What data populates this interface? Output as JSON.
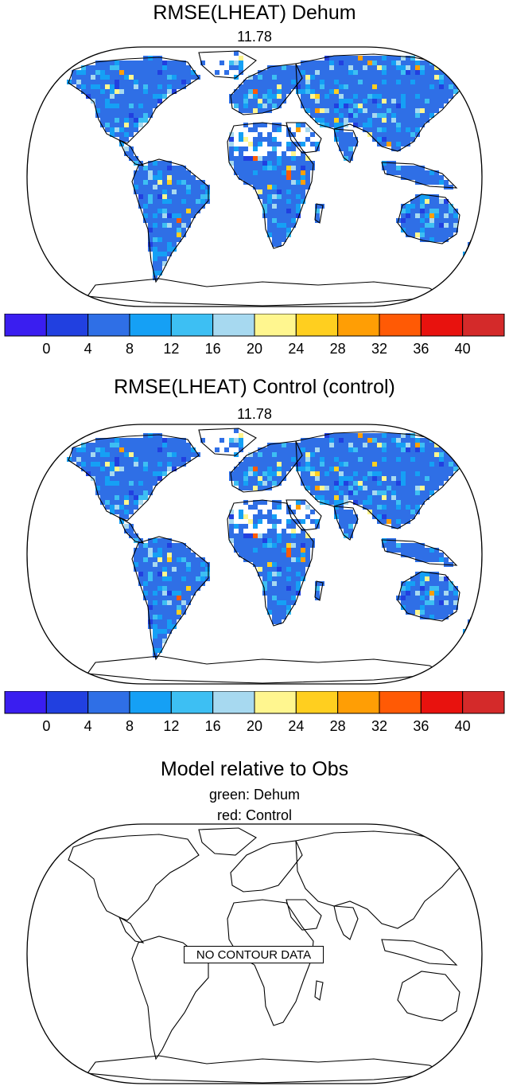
{
  "panels": [
    {
      "title": "RMSE(LHEAT) Dehum",
      "value_label": "11.78"
    },
    {
      "title": "RMSE(LHEAT) Control (control)",
      "value_label": "11.78"
    },
    {
      "title": "Model relative to Obs",
      "legend_lines": [
        "green: Dehum",
        "red: Control"
      ],
      "message": "NO CONTOUR DATA"
    }
  ],
  "colorbar": {
    "colors": [
      "#3a1ef0",
      "#2140e0",
      "#2f6fe6",
      "#15a0f5",
      "#3dbff3",
      "#a7d9f0",
      "#fff68f",
      "#ffcf1f",
      "#ff9e05",
      "#ff5a05",
      "#e8120e",
      "#d42a2a"
    ],
    "labels": [
      "0",
      "4",
      "8",
      "12",
      "16",
      "20",
      "24",
      "28",
      "32",
      "36",
      "40"
    ]
  },
  "chart_data": {
    "type": "heatmap",
    "projection": "Robinson (global)",
    "variable": "RMSE(LHEAT)",
    "panels": [
      "Dehum",
      "Control (control)"
    ],
    "levels": [
      0,
      4,
      8,
      12,
      16,
      20,
      24,
      28,
      32,
      36,
      40
    ],
    "global_value": 11.78
  }
}
